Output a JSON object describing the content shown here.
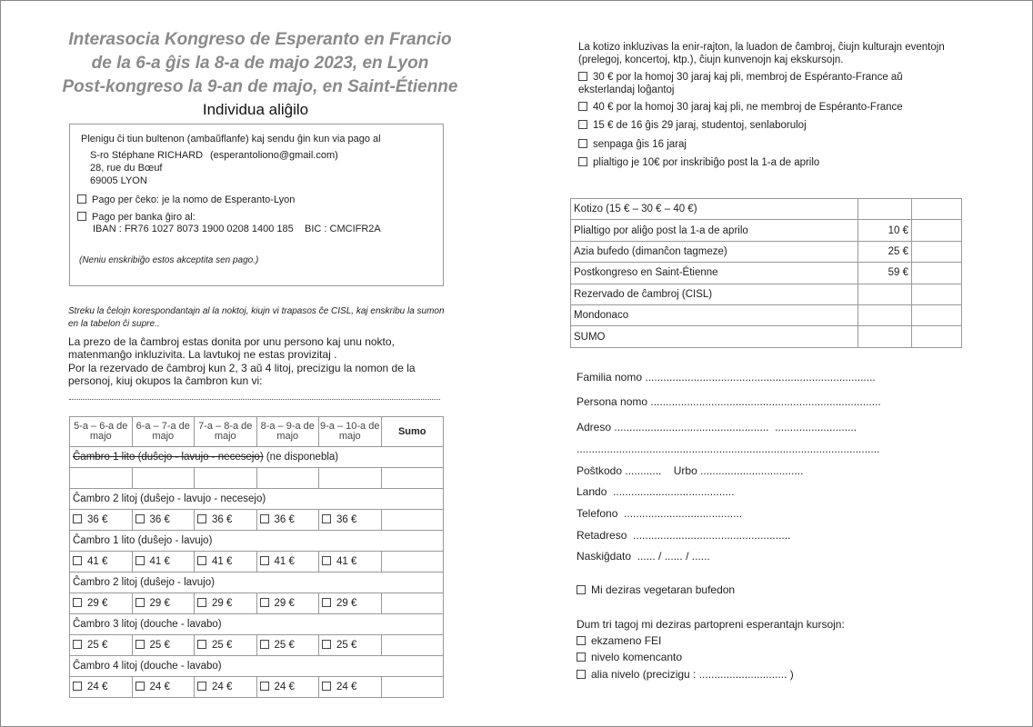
{
  "title": {
    "line1": "Interasocia Kongreso de Esperanto en Francio",
    "line2": "de la 6-a ĝis la 8-a de majo 2023, en Lyon",
    "line3": "Post-kongreso la 9-an de majo, en Saint-Étienne"
  },
  "subtitle": "Individua aliĝilo",
  "payment_box": {
    "intro": "Plenigu ĉi tiun bultenon (ambaŭflanfe) kaj sendu ĝin kun via pago al",
    "name": "S-ro Stéphane RICHARD",
    "email": "(esperantoliono@gmail.com)",
    "street": "28, rue du Bœuf",
    "city": "69005 LYON",
    "cheque": "Pago per ĉeko: je la nomo de Esperanto-Lyon",
    "bank": "Pago per banka ĝiro al:",
    "iban": "IBAN : FR76 1027 8073 1900 0208 1400 185    BIC : CMCIFR2A",
    "note": "(Neniu enskribiĝo estos akceptita sen pago.)"
  },
  "instructions": {
    "italic": "Streku la ĉelojn korespondantajn al la noktoj, kiujn vi trapasos ĉe CISL, kaj enskribu la sumon en la tabelon ĉi supre..",
    "p1": "La prezo de la ĉambroj estas donita por unu persono kaj unu nokto, matenmanĝo inkluzivita. La lavtukoj ne estas provizitaj .",
    "p2": "Por la rezervado de ĉambroj kun 2, 3 aŭ 4 litoj, precizigu la nomon de la personoj, kiuj okupos la ĉambron kun vi:"
  },
  "room_table": {
    "headers": [
      "5-a – 6-a de majo",
      "6-a – 7-a de majo",
      "7-a – 8-a de majo",
      "8-a – 9-a de majo",
      "9-a – 10-a de majo",
      "Sumo"
    ],
    "rooms": [
      {
        "label_struck": "Ĉambro 1 lito (duŝejo - lavujo - necesejo)",
        "label": " (ne disponebla)",
        "price": ""
      },
      {
        "label_struck": "",
        "label": "Ĉambro 2 litoj (duŝejo - lavujo - necesejo)",
        "price": "36 €"
      },
      {
        "label_struck": "",
        "label": "Ĉambro 1 lito (duŝejo - lavujo)",
        "price": "41 €"
      },
      {
        "label_struck": "",
        "label": "Ĉambro 2 litoj (duŝejo - lavujo)",
        "price": "29 €"
      },
      {
        "label_struck": "",
        "label": "Ĉambro 3 litoj (douche - lavabo)",
        "price": "25 €"
      },
      {
        "label_struck": "",
        "label": "Ĉambro 4 litoj (douche - lavabo)",
        "price": "24 €"
      }
    ]
  },
  "fees": {
    "intro": "La kotizo inkluzivas la enir-rajton, la luadon de ĉambroj, ĉiujn kulturajn eventojn (prelegoj, koncertoj, ktp.), ĉiujn kunvenojn kaj ekskursojn.",
    "options": [
      "30 €  por la homoj 30 jaraj kaj pli, membroj de Espéranto-France aŭ eksterlandaj loĝantoj",
      "40 € por la homoj 30 jaraj kaj pli, ne membroj de Espéranto-France",
      "15 € de 16 ĝis 29 jaraj, studentoj, senlaboruloj",
      "senpaga ĝis 16 jaraj",
      "plialtigo je 10€ por inskribiĝo post la 1-a de aprilo"
    ]
  },
  "summary_table": [
    {
      "label": "Kotizo (15 € – 30 € – 40 €)",
      "price": ""
    },
    {
      "label": "Plialtigo por aliĝo post la 1-a de aprilo",
      "price": "10 €"
    },
    {
      "label": "Azia bufedo (dimanĉon tagmeze)",
      "price": "25 €"
    },
    {
      "label": "Postkongreso en Saint-Étienne",
      "price": "59 €"
    },
    {
      "label": "Rezervado de ĉambroj (CISL)",
      "price": ""
    },
    {
      "label": "Mondonaco",
      "price": ""
    },
    {
      "label": "SUMO",
      "price": ""
    }
  ],
  "form": {
    "family": "Familia nomo",
    "persona": "Persona nomo",
    "adreso": "Adreso",
    "postkodo": "Poŝtkodo",
    "urbo": "Urbo",
    "lando": "Lando",
    "telefono": "Telefono",
    "retadreso": "Retadreso",
    "naskigdato": "Naskiĝdato",
    "date_format": "...... / ...... / ......",
    "vegetarian": "Mi deziras vegetaran bufedon",
    "courses_intro": "Dum tri tagoj mi deziras partopreni esperantajn kursojn:",
    "courses": [
      "ekzameno FEI",
      "nivelo komencanto",
      "alia nivelo (precizigu : ............................. )"
    ]
  }
}
